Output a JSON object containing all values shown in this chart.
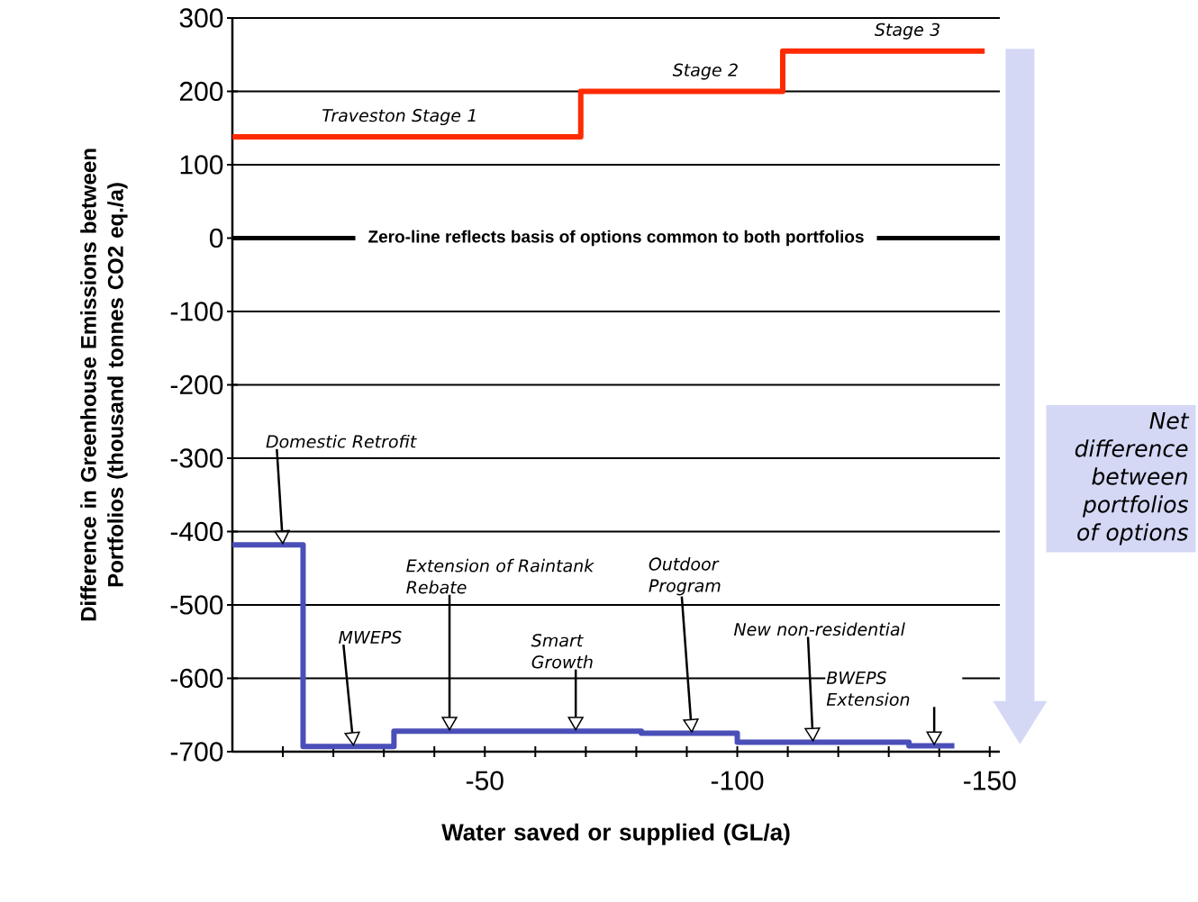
{
  "chart_data": {
    "type": "step",
    "xlabel": "Water saved or supplied (GL/a)",
    "ylabel": "Difference in Greenhouse Emissions between Portfolios (thousand tonnes CO2 eq./a)",
    "xlim": [
      0,
      -152
    ],
    "ylim": [
      -700,
      300
    ],
    "xticks": [
      {
        "value": -10,
        "label": null
      },
      {
        "value": -20,
        "label": null
      },
      {
        "value": -30,
        "label": null
      },
      {
        "value": -40,
        "label": null
      },
      -50,
      {
        "value": -60,
        "label": null
      },
      {
        "value": -70,
        "label": null
      },
      {
        "value": -80,
        "label": null
      },
      {
        "value": -90,
        "label": null
      },
      -100,
      {
        "value": -110,
        "label": null
      },
      {
        "value": -120,
        "label": null
      },
      {
        "value": -130,
        "label": null
      },
      {
        "value": -140,
        "label": null
      },
      -150
    ],
    "yticks": [
      -700,
      -600,
      -500,
      -400,
      -300,
      -200,
      -100,
      0,
      100,
      200,
      300
    ],
    "grid": "y",
    "series": [
      {
        "color": "#ff2a00",
        "x": [
          0,
          -69,
          -109,
          -149
        ],
        "values": [
          138,
          200,
          255,
          255
        ]
      },
      {
        "color": "#4a4fb8",
        "x": [
          0,
          -14,
          -32,
          -53,
          -81,
          -100,
          -134,
          -143
        ],
        "values": [
          -418,
          -693,
          -672,
          -672,
          -675,
          -687,
          -692,
          -692
        ]
      }
    ],
    "ref_lines": [
      {
        "axis": "y",
        "value": 0,
        "label": "Zero-line reflects basis of options common to both portfolios",
        "color": "#000000"
      }
    ],
    "annotations": [
      {
        "text": "Traveston Stage 1",
        "x": -40,
        "y": 138
      },
      {
        "text": "Stage 2",
        "x": -97,
        "y": 200
      },
      {
        "text": "Stage 3",
        "x": -137,
        "y": 255
      },
      "Domestic Retrofit",
      "MWEPS",
      "Extension of Raintank Rebate",
      "Smart Growth",
      "Outdoor Program",
      "New non-residential",
      "BWEPS Extension",
      "Net difference between portfolios of options"
    ]
  }
}
